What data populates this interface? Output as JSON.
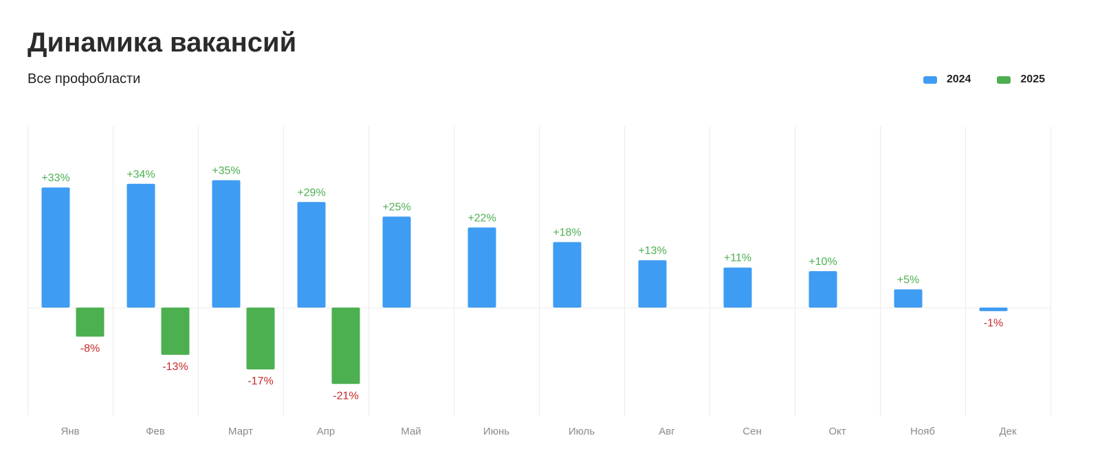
{
  "header": {
    "title": "Динамика вакансий",
    "subtitle": "Все профобласти"
  },
  "legend": [
    {
      "label": "2024",
      "color": "#3f9cf3"
    },
    {
      "label": "2025",
      "color": "#4caf50"
    }
  ],
  "colors": {
    "positive_label": "#4caf50",
    "negative_label": "#c62828",
    "grid": "#ebebeb",
    "tick_label": "#8a8a8a"
  },
  "chart_data": {
    "type": "bar",
    "title": "Динамика вакансий",
    "subtitle": "Все профобласти",
    "categories": [
      "Янв",
      "Фев",
      "Март",
      "Апр",
      "Май",
      "Июнь",
      "Июль",
      "Авг",
      "Сен",
      "Окт",
      "Нояб",
      "Дек"
    ],
    "series": [
      {
        "name": "2024",
        "color": "#3f9cf3",
        "values": [
          33,
          34,
          35,
          29,
          25,
          22,
          18,
          13,
          11,
          10,
          5,
          -1
        ],
        "labels": [
          "+33%",
          "+34%",
          "+35%",
          "+29%",
          "+25%",
          "+22%",
          "+18%",
          "+13%",
          "+11%",
          "+10%",
          "+5%",
          "-1%"
        ]
      },
      {
        "name": "2025",
        "color": "#4caf50",
        "values": [
          -8,
          -13,
          -17,
          -21,
          null,
          null,
          null,
          null,
          null,
          null,
          null,
          null
        ],
        "labels": [
          "-8%",
          "-13%",
          "-17%",
          "-21%",
          null,
          null,
          null,
          null,
          null,
          null,
          null,
          null
        ]
      }
    ],
    "xlabel": "",
    "ylabel": "",
    "ylim": [
      -30,
      50
    ],
    "grid": "vertical",
    "legend_position": "top-right"
  }
}
